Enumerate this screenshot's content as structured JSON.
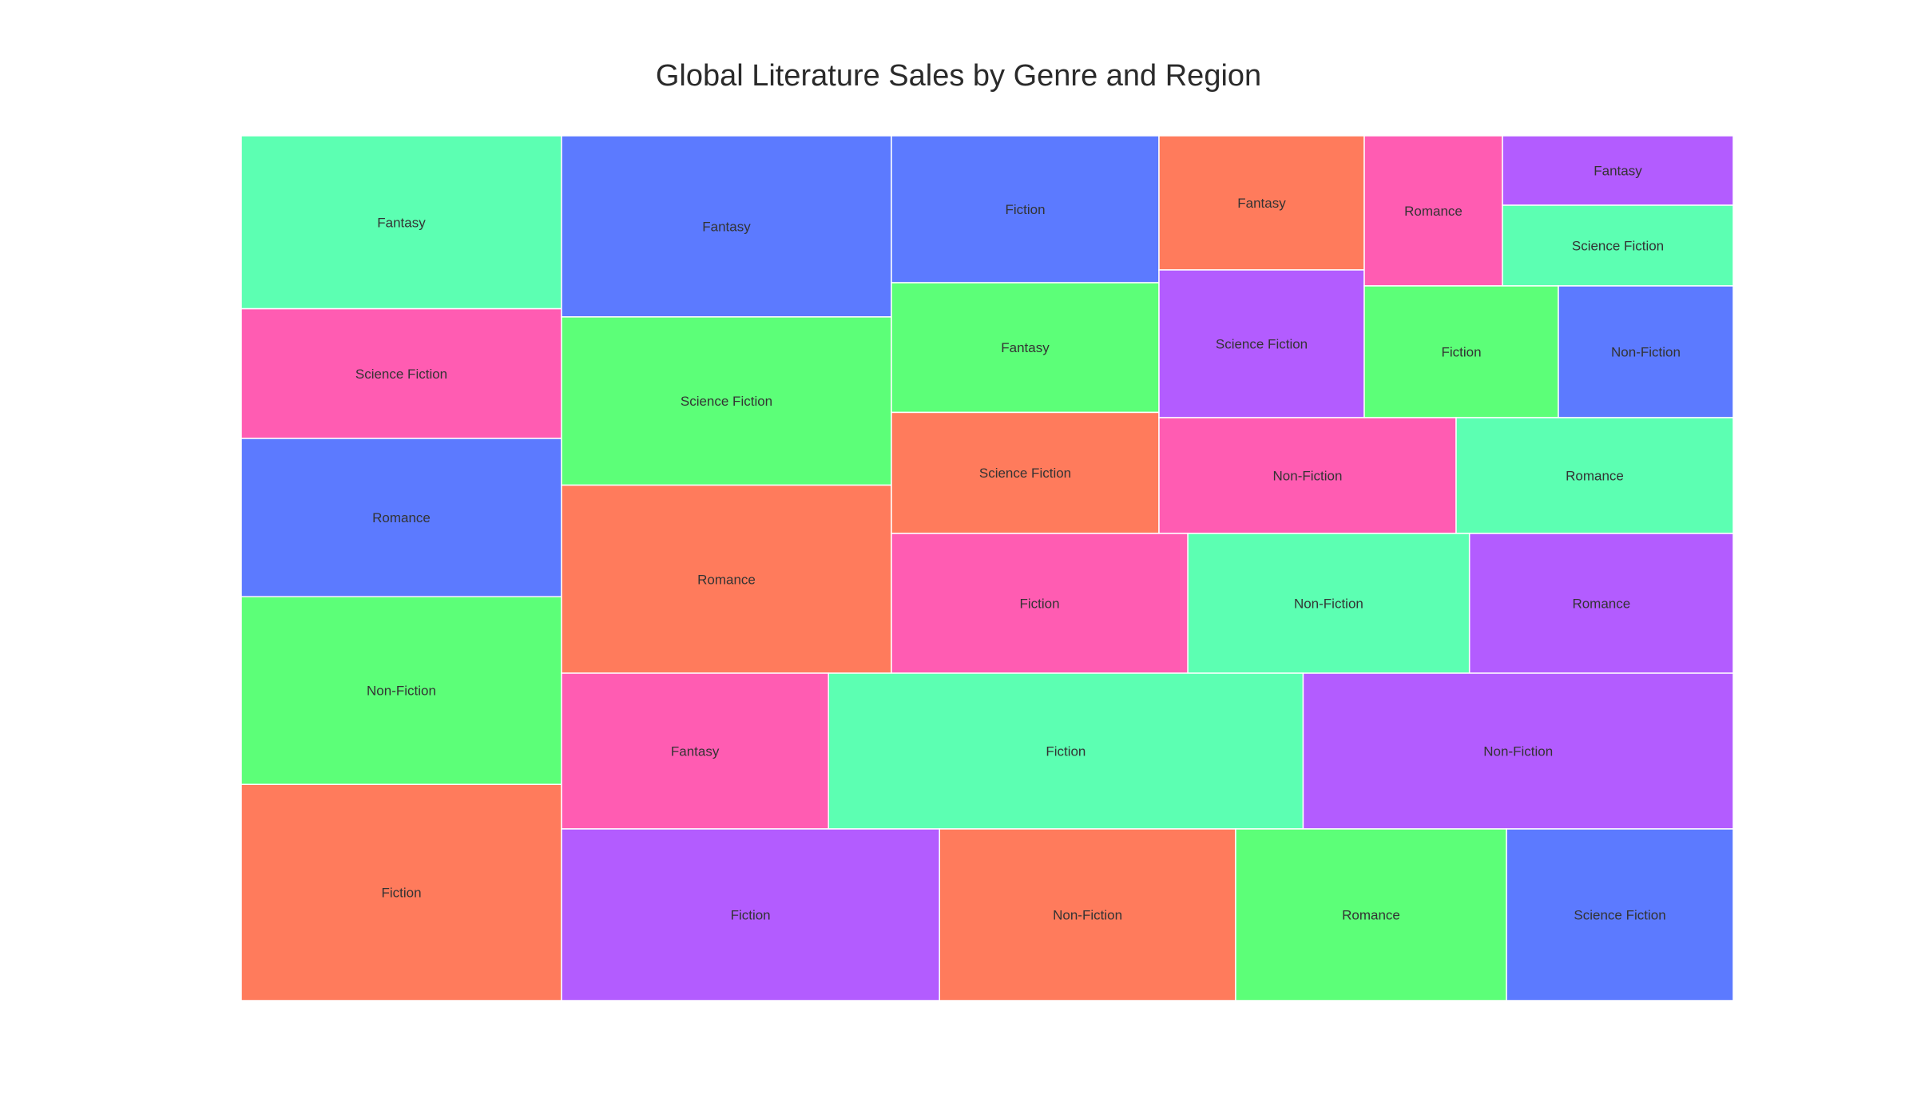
{
  "chart_data": {
    "type": "treemap",
    "title": "Global Literature Sales by Genre and Region",
    "palette": {
      "orange": "#ff7b5c",
      "green": "#5cff78",
      "blue": "#5c7aff",
      "pink": "#ff5cb2",
      "teal": "#5cffb2",
      "purple": "#b35cff"
    },
    "columns": [
      {
        "items": [
          {
            "label": "Fantasy",
            "value": 20,
            "color": "teal"
          },
          {
            "label": "Science Fiction",
            "value": 15,
            "color": "pink"
          },
          {
            "label": "Romance",
            "value": 18.3,
            "color": "blue"
          },
          {
            "label": "Non-Fiction",
            "value": 21.7,
            "color": "green"
          },
          {
            "label": "Fiction",
            "value": 25,
            "color": "orange"
          }
        ]
      },
      {
        "items": [
          {
            "label": "Fantasy",
            "value": 21,
            "color": "blue"
          },
          {
            "label": "Science Fiction",
            "value": 19.5,
            "color": "green"
          },
          {
            "label": "Romance",
            "value": 21.8,
            "color": "orange"
          }
        ]
      }
    ],
    "rows": [
      {
        "items": [
          {
            "label": "Fantasy",
            "value": 18,
            "color": "pink"
          },
          {
            "label": "Fiction",
            "value": 32,
            "color": "teal"
          },
          {
            "label": "Non-Fiction",
            "value": 29,
            "color": "purple"
          }
        ]
      },
      {
        "items": [
          {
            "label": "Fiction",
            "value": 30,
            "color": "purple"
          },
          {
            "label": "Non-Fiction",
            "value": 23.5,
            "color": "orange"
          },
          {
            "label": "Romance",
            "value": 21.5,
            "color": "green"
          },
          {
            "label": "Science Fiction",
            "value": 18,
            "color": "blue"
          }
        ]
      }
    ],
    "middle_left_column": [
      {
        "label": "Fiction",
        "value": 17,
        "color": "blue"
      },
      {
        "label": "Fantasy",
        "value": 15,
        "color": "green"
      },
      {
        "label": "Science Fiction",
        "value": 14,
        "color": "orange"
      }
    ],
    "middle_right": [
      {
        "label": "Fantasy",
        "value": 15.5,
        "color": "orange"
      },
      {
        "label": "Science Fiction",
        "value": 17,
        "color": "purple"
      },
      {
        "label": "Romance",
        "value": 14,
        "color": "pink"
      },
      {
        "label": "Fantasy",
        "value": 8,
        "color": "purple"
      },
      {
        "label": "Science Fiction",
        "value": 9.5,
        "color": "teal"
      },
      {
        "label": "Fiction",
        "value": 12,
        "color": "green"
      },
      {
        "label": "Non-Fiction",
        "value": 11,
        "color": "blue"
      },
      {
        "label": "Non-Fiction",
        "value": 17,
        "color": "pink"
      },
      {
        "label": "Romance",
        "value": 16,
        "color": "teal"
      }
    ],
    "middle_bottom_row": [
      {
        "label": "Fiction",
        "value": 20,
        "color": "pink"
      },
      {
        "label": "Non-Fiction",
        "value": 19,
        "color": "teal"
      },
      {
        "label": "Romance",
        "value": 17.8,
        "color": "purple"
      }
    ]
  }
}
